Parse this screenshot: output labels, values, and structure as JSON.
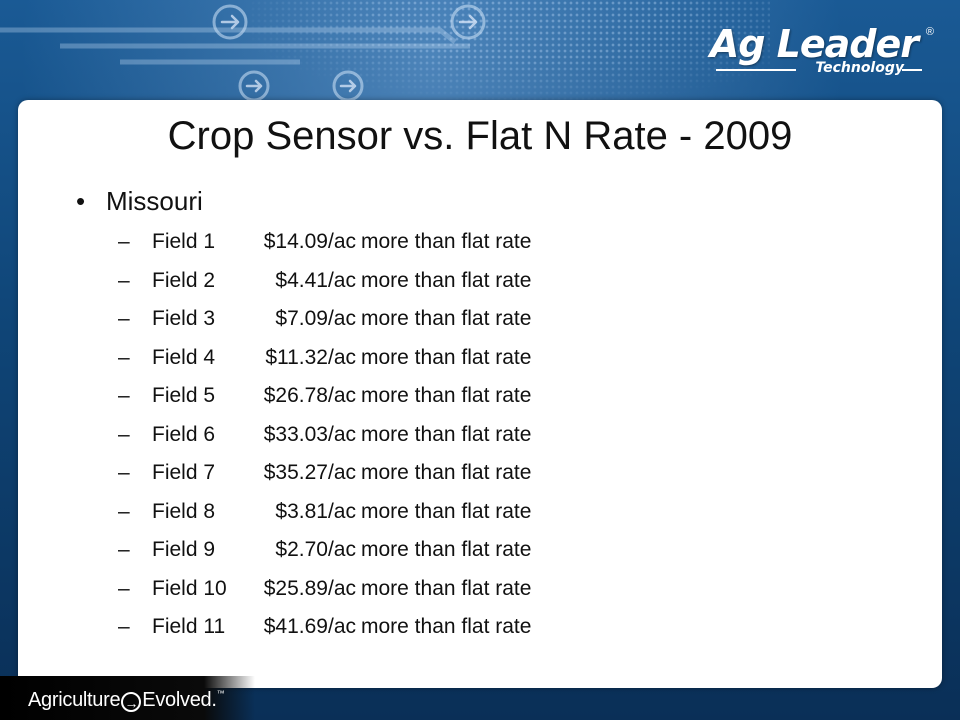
{
  "logo": {
    "brand": "Ag Leader",
    "registered": "®",
    "sub": "Technology"
  },
  "slide": {
    "title": "Crop Sensor vs. Flat N Rate - 2009",
    "bullet": "Missouri",
    "bullet_symbol": "•",
    "dash_symbol": "–",
    "rows": [
      {
        "field": "Field 1",
        "amount": "$14.09/ac",
        "desc": "more than flat rate"
      },
      {
        "field": "Field 2",
        "amount": "$4.41/ac",
        "desc": "more than flat rate"
      },
      {
        "field": "Field 3",
        "amount": "$7.09/ac",
        "desc": "more than flat rate"
      },
      {
        "field": "Field 4",
        "amount": "$11.32/ac",
        "desc": "more than flat rate"
      },
      {
        "field": "Field 5",
        "amount": "$26.78/ac",
        "desc": "more than flat rate"
      },
      {
        "field": "Field 6",
        "amount": "$33.03/ac",
        "desc": "more than flat rate"
      },
      {
        "field": "Field 7",
        "amount": "$35.27/ac",
        "desc": "more than flat rate"
      },
      {
        "field": "Field 8",
        "amount": "$3.81/ac",
        "desc": "more than flat rate"
      },
      {
        "field": "Field 9",
        "amount": "$2.70/ac",
        "desc": "more than flat rate"
      },
      {
        "field": "Field 10",
        "amount": "$25.89/ac",
        "desc": "more than flat rate"
      },
      {
        "field": "Field 11",
        "amount": "$41.69/ac",
        "desc": "more than flat rate"
      }
    ]
  },
  "footer": {
    "left": "Agriculture",
    "arrow": "→",
    "right": "Evolved.",
    "tm": "™"
  },
  "colors": {
    "background": "#0f4577",
    "panel": "#ffffff",
    "text": "#111111"
  }
}
